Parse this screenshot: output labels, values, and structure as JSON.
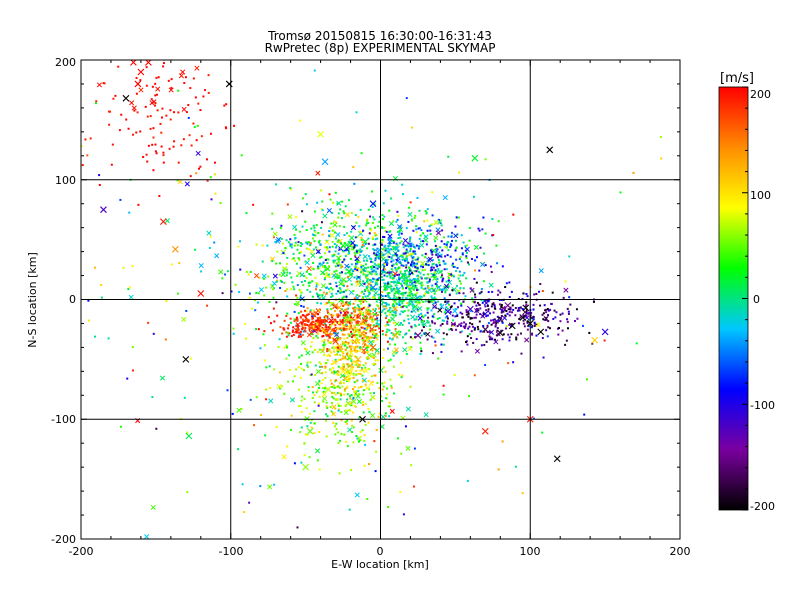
{
  "chart_data": {
    "type": "scatter",
    "title": "Tromsø 20150815 16:30:00-16:31:43",
    "subtitle": "RwPretec (8p) EXPERIMENTAL SKYMAP",
    "xlabel": "E-W location [km]",
    "ylabel": "N-S location [km]",
    "xlim": [
      -200,
      200
    ],
    "ylim": [
      -200,
      200
    ],
    "x_ticks": [
      "-200",
      "-100",
      "0",
      "100",
      "200"
    ],
    "y_ticks": [
      "-200",
      "-100",
      "0",
      "100",
      "200"
    ],
    "grid_x": [
      -100,
      0,
      100
    ],
    "grid_y": [
      -100,
      0,
      100
    ],
    "colorbar": {
      "label": "[m/s]",
      "range": [
        -200,
        200
      ],
      "ticks": [
        "200",
        "100",
        "0",
        "-100",
        "-200"
      ],
      "colormap": [
        "#000000",
        "#7a00a0",
        "#0000ff",
        "#00c8ff",
        "#00ff00",
        "#ffff00",
        "#ff8c00",
        "#ff0000"
      ]
    },
    "markers": [
      "dot",
      "cross"
    ],
    "clusters": [
      {
        "x": -15,
        "y": 30,
        "sx": 35,
        "sy": 25,
        "n": 900,
        "v": 20,
        "sv": 45
      },
      {
        "x": 15,
        "y": 5,
        "sx": 20,
        "sy": 20,
        "n": 500,
        "v": 0,
        "sv": 25
      },
      {
        "x": 20,
        "y": 35,
        "sx": 25,
        "sy": 15,
        "n": 250,
        "v": -80,
        "sv": 30
      },
      {
        "x": 80,
        "y": -15,
        "sx": 25,
        "sy": 12,
        "n": 380,
        "v": -150,
        "sv": 40
      },
      {
        "x": -40,
        "y": -20,
        "sx": 15,
        "sy": 6,
        "n": 280,
        "v": 185,
        "sv": 15
      },
      {
        "x": -15,
        "y": -20,
        "sx": 10,
        "sy": 12,
        "n": 200,
        "v": 130,
        "sv": 35
      },
      {
        "x": -25,
        "y": -70,
        "sx": 20,
        "sy": 30,
        "n": 420,
        "v": 60,
        "sv": 35
      },
      {
        "x": -20,
        "y": -55,
        "sx": 10,
        "sy": 15,
        "n": 150,
        "v": 110,
        "sv": 20
      },
      {
        "x": -150,
        "y": 150,
        "sx": 22,
        "sy": 28,
        "n": 130,
        "v": 195,
        "sv": 8
      },
      {
        "x": -45,
        "y": -15,
        "sx": 90,
        "sy": 80,
        "n": 280,
        "v": 30,
        "sv": 90
      }
    ],
    "crosses": [
      {
        "x": -170,
        "y": 168,
        "v": -200
      },
      {
        "x": -101,
        "y": 180,
        "v": -200
      },
      {
        "x": -185,
        "y": 75,
        "v": -120
      },
      {
        "x": 113,
        "y": 125,
        "v": -200
      },
      {
        "x": 63,
        "y": 118,
        "v": 20
      },
      {
        "x": -40,
        "y": 138,
        "v": 80
      },
      {
        "x": -37,
        "y": 115,
        "v": -40
      },
      {
        "x": -130,
        "y": -50,
        "v": -200
      },
      {
        "x": -128,
        "y": -114,
        "v": 10
      },
      {
        "x": 150,
        "y": -27,
        "v": -100
      },
      {
        "x": 143,
        "y": -34,
        "v": 110
      },
      {
        "x": 118,
        "y": -133,
        "v": -200
      },
      {
        "x": 70,
        "y": -110,
        "v": 190
      },
      {
        "x": -12,
        "y": -100,
        "v": -200
      },
      {
        "x": 100,
        "y": -100,
        "v": 190
      },
      {
        "x": -120,
        "y": 5,
        "v": 195
      },
      {
        "x": -137,
        "y": 42,
        "v": 140
      },
      {
        "x": -145,
        "y": 65,
        "v": 190
      },
      {
        "x": -47,
        "y": -110,
        "v": 50
      },
      {
        "x": -50,
        "y": -140,
        "v": 60
      },
      {
        "x": -165,
        "y": 198,
        "v": 200
      },
      {
        "x": -160,
        "y": 190,
        "v": 200
      },
      {
        "x": -155,
        "y": 198,
        "v": 200
      },
      {
        "x": -162,
        "y": 180,
        "v": 200
      },
      {
        "x": 95,
        "y": -15,
        "v": -200
      },
      {
        "x": 88,
        "y": -22,
        "v": -200
      },
      {
        "x": 80,
        "y": -28,
        "v": -190
      },
      {
        "x": 70,
        "y": -25,
        "v": -170
      },
      {
        "x": 100,
        "y": -20,
        "v": -200
      },
      {
        "x": 107,
        "y": -27,
        "v": -200
      },
      {
        "x": 97,
        "y": -7,
        "v": -200
      },
      {
        "x": 85,
        "y": -5,
        "v": -150
      },
      {
        "x": 25,
        "y": -30,
        "v": -150
      },
      {
        "x": 45,
        "y": -10,
        "v": -100
      },
      {
        "x": 60,
        "y": -8,
        "v": -120
      },
      {
        "x": -5,
        "y": 80,
        "v": -80
      },
      {
        "x": 10,
        "y": -30,
        "v": 120
      },
      {
        "x": -30,
        "y": -35,
        "v": 170
      },
      {
        "x": -5,
        "y": -40,
        "v": 160
      },
      {
        "x": -15,
        "y": -50,
        "v": 120
      },
      {
        "x": -25,
        "y": -60,
        "v": 90
      },
      {
        "x": -35,
        "y": -75,
        "v": 70
      },
      {
        "x": 15,
        "y": 20,
        "v": 10
      },
      {
        "x": -25,
        "y": 45,
        "v": 30
      },
      {
        "x": 5,
        "y": 40,
        "v": -30
      },
      {
        "x": -5,
        "y": 10,
        "v": -50
      }
    ]
  }
}
